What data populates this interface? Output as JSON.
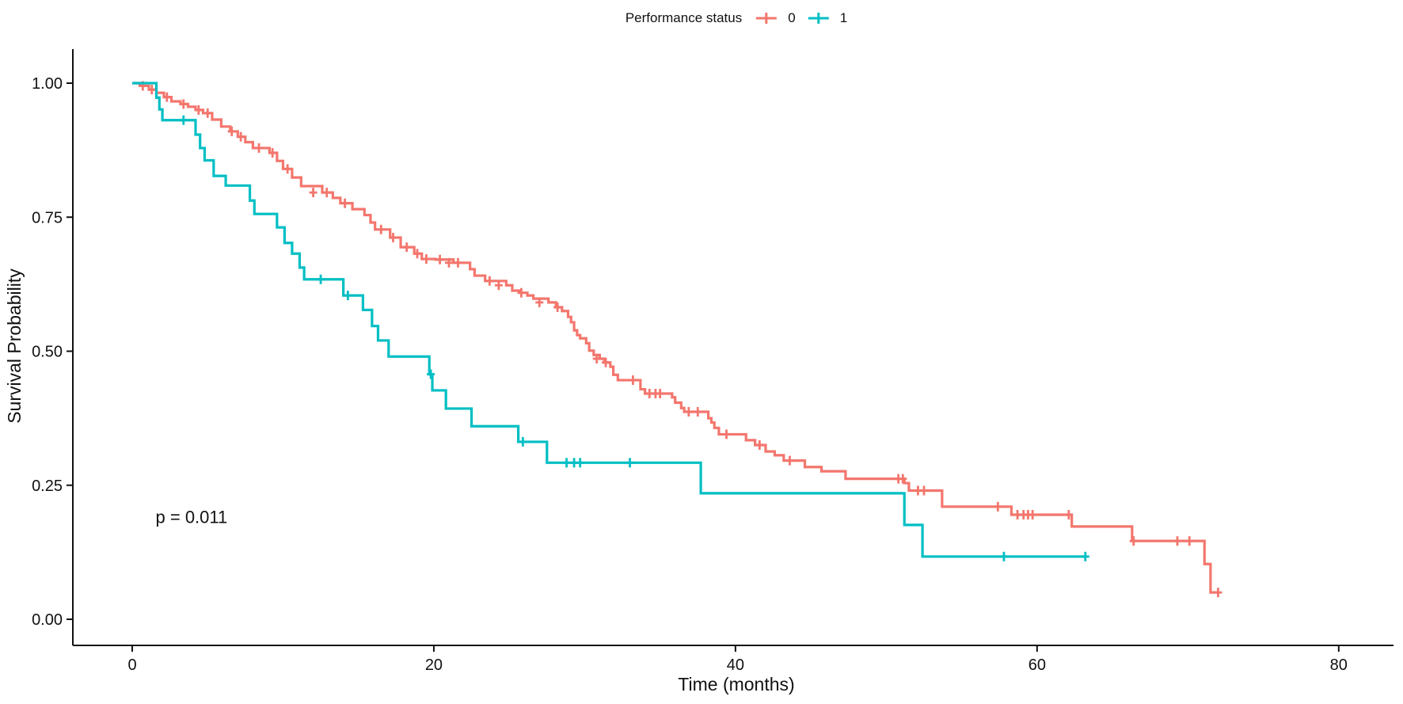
{
  "chart_data": {
    "type": "line",
    "subtype": "kaplan_meier_step_survival",
    "title": "",
    "xlabel": "Time (months)",
    "ylabel": "Survival Probability",
    "grid": false,
    "legend": {
      "title": "Performance status",
      "position": "top",
      "entries": [
        {
          "label": "0",
          "color": "#F3766D"
        },
        {
          "label": "1",
          "color": "#00BFC4"
        }
      ]
    },
    "x_axis": {
      "min": 0,
      "max": 83,
      "ticks": [
        {
          "v": 0,
          "label": "0"
        },
        {
          "v": 20,
          "label": "20"
        },
        {
          "v": 40,
          "label": "40"
        },
        {
          "v": 60,
          "label": "60"
        },
        {
          "v": 80,
          "label": "80"
        }
      ]
    },
    "y_axis": {
      "min": 0,
      "max": 1,
      "ticks": [
        {
          "v": 0.0,
          "label": "0.00"
        },
        {
          "v": 0.25,
          "label": "0.25"
        },
        {
          "v": 0.5,
          "label": "0.50"
        },
        {
          "v": 0.75,
          "label": "0.75"
        },
        {
          "v": 1.0,
          "label": "1.00"
        }
      ]
    },
    "annotations": [
      {
        "text": "p = 0.011",
        "t": 1.55,
        "s": 0.19
      }
    ],
    "series": [
      {
        "name": "0",
        "color": "#F3766D",
        "end_t": 72.1,
        "steps": [
          [
            0,
            1.0
          ],
          [
            0.5,
            0.995
          ],
          [
            1.1,
            0.988
          ],
          [
            1.6,
            0.982
          ],
          [
            2.1,
            0.974
          ],
          [
            2.6,
            0.966
          ],
          [
            3.2,
            0.961
          ],
          [
            3.7,
            0.956
          ],
          [
            4.2,
            0.95
          ],
          [
            4.7,
            0.944
          ],
          [
            5.3,
            0.932
          ],
          [
            5.9,
            0.919
          ],
          [
            6.5,
            0.91
          ],
          [
            7.0,
            0.9
          ],
          [
            7.5,
            0.89
          ],
          [
            8.0,
            0.879
          ],
          [
            9.1,
            0.87
          ],
          [
            9.6,
            0.855
          ],
          [
            10.0,
            0.84
          ],
          [
            10.6,
            0.824
          ],
          [
            11.2,
            0.808
          ],
          [
            12.6,
            0.796
          ],
          [
            13.3,
            0.786
          ],
          [
            13.8,
            0.776
          ],
          [
            14.6,
            0.765
          ],
          [
            15.4,
            0.754
          ],
          [
            15.8,
            0.74
          ],
          [
            16.1,
            0.727
          ],
          [
            17.1,
            0.712
          ],
          [
            17.8,
            0.694
          ],
          [
            18.7,
            0.682
          ],
          [
            19.2,
            0.672
          ],
          [
            20.1,
            0.671
          ],
          [
            21.3,
            0.665
          ],
          [
            22.4,
            0.653
          ],
          [
            22.7,
            0.641
          ],
          [
            23.4,
            0.631
          ],
          [
            24.8,
            0.623
          ],
          [
            25.2,
            0.613
          ],
          [
            25.7,
            0.609
          ],
          [
            26.2,
            0.604
          ],
          [
            26.6,
            0.598
          ],
          [
            27.6,
            0.591
          ],
          [
            28.1,
            0.582
          ],
          [
            28.5,
            0.575
          ],
          [
            28.9,
            0.564
          ],
          [
            29.1,
            0.554
          ],
          [
            29.3,
            0.539
          ],
          [
            29.5,
            0.53
          ],
          [
            29.7,
            0.524
          ],
          [
            30.1,
            0.515
          ],
          [
            30.3,
            0.501
          ],
          [
            30.6,
            0.493
          ],
          [
            31.0,
            0.486
          ],
          [
            31.3,
            0.479
          ],
          [
            31.7,
            0.471
          ],
          [
            31.9,
            0.456
          ],
          [
            32.2,
            0.446
          ],
          [
            33.7,
            0.429
          ],
          [
            34.0,
            0.421
          ],
          [
            35.8,
            0.414
          ],
          [
            36.0,
            0.404
          ],
          [
            36.4,
            0.394
          ],
          [
            36.6,
            0.387
          ],
          [
            38.2,
            0.375
          ],
          [
            38.4,
            0.367
          ],
          [
            38.6,
            0.357
          ],
          [
            38.9,
            0.345
          ],
          [
            40.7,
            0.334
          ],
          [
            41.3,
            0.325
          ],
          [
            42.0,
            0.313
          ],
          [
            42.6,
            0.306
          ],
          [
            43.2,
            0.296
          ],
          [
            44.6,
            0.284
          ],
          [
            45.7,
            0.276
          ],
          [
            47.3,
            0.262
          ],
          [
            51.2,
            0.254
          ],
          [
            51.5,
            0.24
          ],
          [
            53.7,
            0.21
          ],
          [
            58.3,
            0.195
          ],
          [
            62.3,
            0.173
          ],
          [
            66.3,
            0.146
          ],
          [
            71.1,
            0.103
          ],
          [
            71.5,
            0.05
          ]
        ],
        "censors": [
          [
            0.7,
            0.995
          ],
          [
            1.3,
            0.988
          ],
          [
            2.3,
            0.974
          ],
          [
            3.4,
            0.961
          ],
          [
            4.4,
            0.95
          ],
          [
            5.0,
            0.944
          ],
          [
            6.6,
            0.91
          ],
          [
            7.2,
            0.9
          ],
          [
            8.4,
            0.879
          ],
          [
            9.3,
            0.87
          ],
          [
            10.3,
            0.84
          ],
          [
            12.0,
            0.796
          ],
          [
            12.9,
            0.796
          ],
          [
            14.1,
            0.776
          ],
          [
            16.5,
            0.727
          ],
          [
            17.3,
            0.712
          ],
          [
            18.2,
            0.694
          ],
          [
            18.9,
            0.682
          ],
          [
            19.5,
            0.672
          ],
          [
            20.4,
            0.671
          ],
          [
            21.0,
            0.665
          ],
          [
            21.6,
            0.665
          ],
          [
            23.7,
            0.631
          ],
          [
            24.3,
            0.623
          ],
          [
            25.8,
            0.609
          ],
          [
            27.0,
            0.591
          ],
          [
            28.2,
            0.582
          ],
          [
            30.8,
            0.486
          ],
          [
            31.4,
            0.479
          ],
          [
            33.2,
            0.446
          ],
          [
            34.3,
            0.421
          ],
          [
            34.7,
            0.421
          ],
          [
            35.0,
            0.421
          ],
          [
            36.9,
            0.387
          ],
          [
            37.5,
            0.387
          ],
          [
            39.4,
            0.345
          ],
          [
            41.6,
            0.325
          ],
          [
            43.6,
            0.296
          ],
          [
            50.8,
            0.262
          ],
          [
            51.1,
            0.262
          ],
          [
            52.1,
            0.24
          ],
          [
            52.5,
            0.24
          ],
          [
            57.4,
            0.21
          ],
          [
            58.7,
            0.195
          ],
          [
            59.1,
            0.195
          ],
          [
            59.4,
            0.195
          ],
          [
            59.7,
            0.195
          ],
          [
            62.1,
            0.195
          ],
          [
            66.4,
            0.146
          ],
          [
            69.3,
            0.146
          ],
          [
            70.1,
            0.146
          ],
          [
            72.0,
            0.05
          ]
        ]
      },
      {
        "name": "1",
        "color": "#00BFC4",
        "end_t": 63.2,
        "steps": [
          [
            0,
            1.0
          ],
          [
            1.6,
            0.973
          ],
          [
            1.8,
            0.951
          ],
          [
            2.0,
            0.931
          ],
          [
            4.2,
            0.904
          ],
          [
            4.5,
            0.879
          ],
          [
            4.8,
            0.856
          ],
          [
            5.4,
            0.827
          ],
          [
            6.2,
            0.809
          ],
          [
            7.8,
            0.781
          ],
          [
            8.1,
            0.756
          ],
          [
            9.6,
            0.731
          ],
          [
            10.1,
            0.702
          ],
          [
            10.6,
            0.682
          ],
          [
            11.1,
            0.656
          ],
          [
            11.4,
            0.634
          ],
          [
            14.0,
            0.604
          ],
          [
            15.3,
            0.577
          ],
          [
            15.9,
            0.547
          ],
          [
            16.3,
            0.52
          ],
          [
            17.0,
            0.49
          ],
          [
            19.7,
            0.457
          ],
          [
            19.9,
            0.427
          ],
          [
            20.8,
            0.393
          ],
          [
            22.5,
            0.36
          ],
          [
            25.6,
            0.331
          ],
          [
            27.5,
            0.292
          ],
          [
            37.7,
            0.235
          ],
          [
            51.2,
            0.176
          ],
          [
            52.4,
            0.117
          ]
        ],
        "censors": [
          [
            3.4,
            0.931
          ],
          [
            12.5,
            0.634
          ],
          [
            14.3,
            0.604
          ],
          [
            19.8,
            0.457
          ],
          [
            25.9,
            0.331
          ],
          [
            28.8,
            0.292
          ],
          [
            29.3,
            0.292
          ],
          [
            29.7,
            0.292
          ],
          [
            33.0,
            0.292
          ],
          [
            57.8,
            0.117
          ],
          [
            63.2,
            0.117
          ]
        ]
      }
    ]
  }
}
